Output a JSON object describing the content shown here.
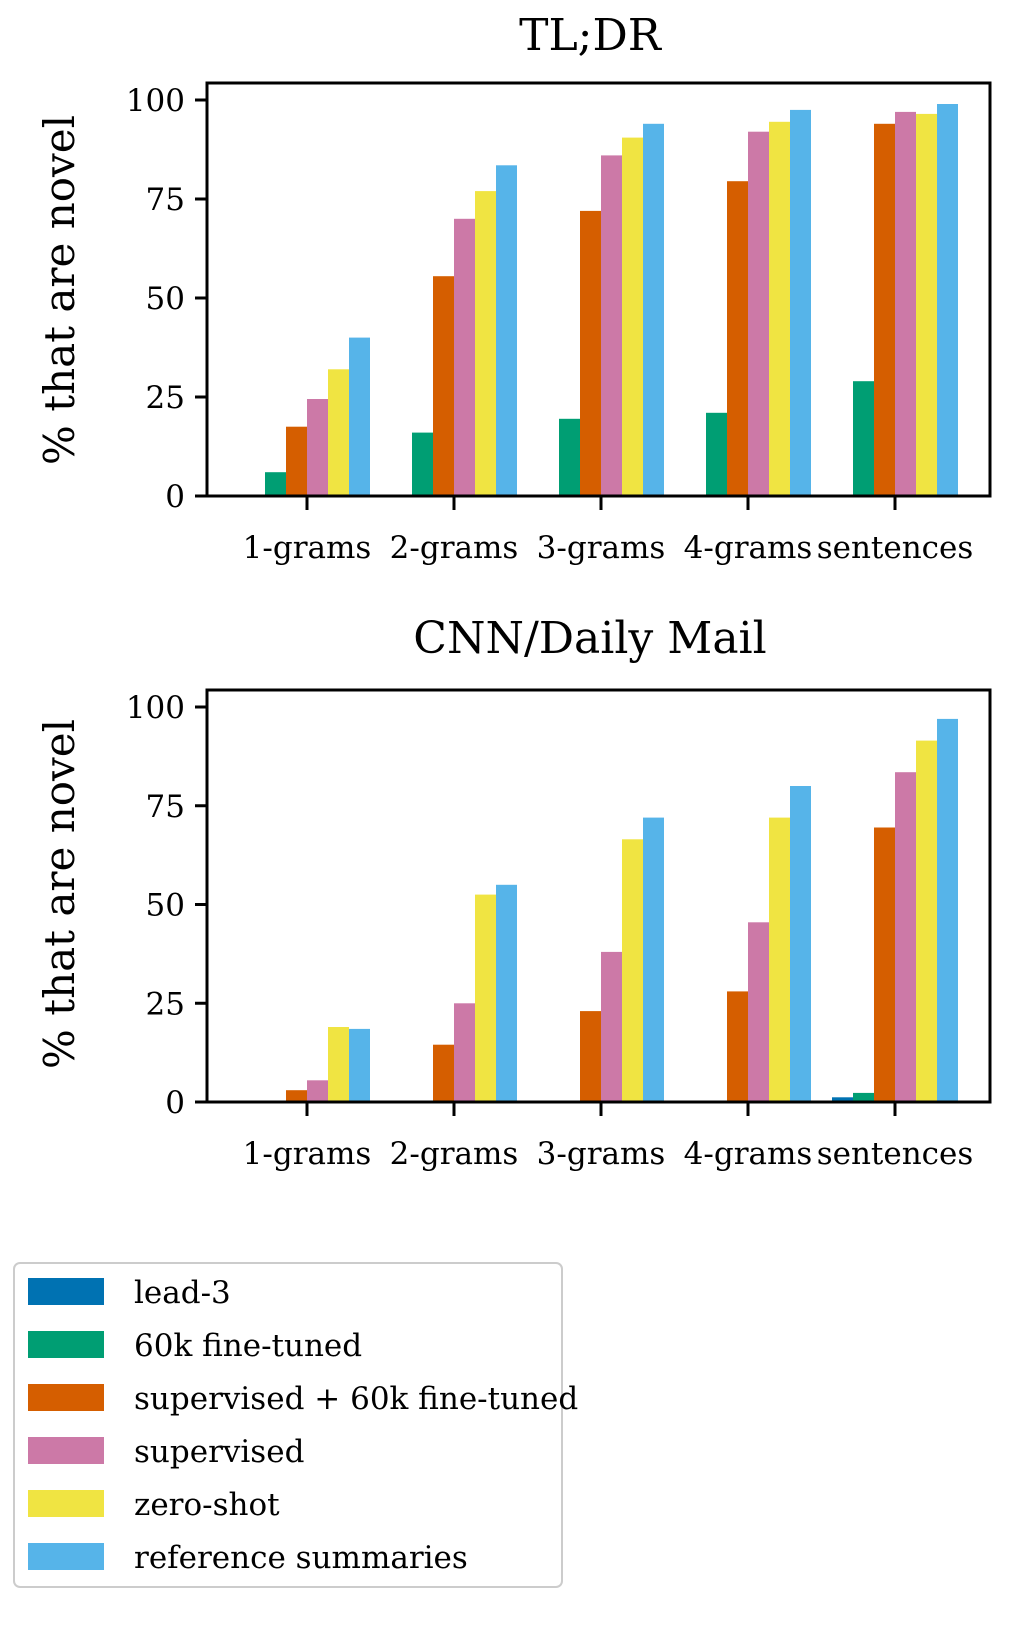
{
  "chart_data": [
    {
      "type": "bar",
      "title": "TL;DR",
      "ylabel": "% that are novel",
      "xlabel": "",
      "ylim": [
        0,
        100
      ],
      "yticks": [
        0,
        25,
        50,
        75,
        100
      ],
      "categories": [
        "1-grams",
        "2-grams",
        "3-grams",
        "4-grams",
        "sentences"
      ],
      "series": [
        {
          "name": "lead-3",
          "values": [
            0,
            0,
            0,
            0,
            0
          ]
        },
        {
          "name": "60k fine-tuned",
          "values": [
            6,
            16,
            19.5,
            21,
            29
          ]
        },
        {
          "name": "supervised + 60k fine-tuned",
          "values": [
            17.5,
            55.5,
            72,
            79.5,
            94
          ]
        },
        {
          "name": "supervised",
          "values": [
            24.5,
            70,
            86,
            92,
            97
          ]
        },
        {
          "name": "zero-shot",
          "values": [
            32,
            77,
            90.5,
            94.5,
            96.5
          ]
        },
        {
          "name": "reference summaries",
          "values": [
            40,
            83.5,
            94,
            97.5,
            99
          ]
        }
      ]
    },
    {
      "type": "bar",
      "title": "CNN/Daily Mail",
      "ylabel": "% that are novel",
      "xlabel": "",
      "ylim": [
        0,
        100
      ],
      "yticks": [
        0,
        25,
        50,
        75,
        100
      ],
      "categories": [
        "1-grams",
        "2-grams",
        "3-grams",
        "4-grams",
        "sentences"
      ],
      "series": [
        {
          "name": "lead-3",
          "values": [
            0,
            0,
            0,
            0.2,
            1.2
          ]
        },
        {
          "name": "60k fine-tuned",
          "values": [
            0,
            0,
            0,
            0.3,
            2.3
          ]
        },
        {
          "name": "supervised + 60k fine-tuned",
          "values": [
            3,
            14.5,
            23,
            28,
            69.5
          ]
        },
        {
          "name": "supervised",
          "values": [
            5.5,
            25,
            38,
            45.5,
            83.5
          ]
        },
        {
          "name": "zero-shot",
          "values": [
            19,
            52.5,
            66.5,
            72,
            91.5
          ]
        },
        {
          "name": "reference summaries",
          "values": [
            18.5,
            55,
            72,
            80,
            97
          ]
        }
      ]
    }
  ],
  "legend": {
    "placement": "bottom-left",
    "items": [
      {
        "label": "lead-3",
        "color": "#0072b2"
      },
      {
        "label": "60k fine-tuned",
        "color": "#009e73"
      },
      {
        "label": "supervised + 60k fine-tuned",
        "color": "#d55e00"
      },
      {
        "label": "supervised",
        "color": "#cc79a7"
      },
      {
        "label": "zero-shot",
        "color": "#f0e442"
      },
      {
        "label": "reference summaries",
        "color": "#56b4e9"
      }
    ]
  }
}
